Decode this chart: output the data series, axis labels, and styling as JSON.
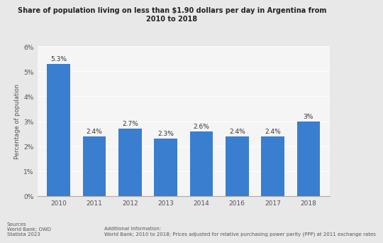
{
  "title_line1": "Share of population living on less than $1.90 dollars per day in Argentina from",
  "title_line2": "2010 to 2018",
  "categories": [
    "2010",
    "2011",
    "2012",
    "2013",
    "2014",
    "2016",
    "2017",
    "2018"
  ],
  "values": [
    5.3,
    2.4,
    2.7,
    2.3,
    2.6,
    2.4,
    2.4,
    3.0
  ],
  "labels": [
    "5.3%",
    "2.4%",
    "2.7%",
    "2.3%",
    "2.6%",
    "2.4%",
    "2.4%",
    "3%"
  ],
  "bar_color": "#3a7ecf",
  "ylabel": "Percentage of population",
  "ylim": [
    0,
    6
  ],
  "yticks": [
    0,
    1,
    2,
    3,
    4,
    5,
    6
  ],
  "ytick_labels": [
    "0%",
    "1%",
    "2%",
    "3%",
    "4%",
    "5%",
    "6%"
  ],
  "background_color": "#e8e8e8",
  "plot_bg_color": "#f5f5f5",
  "title_fontsize": 7.0,
  "label_fontsize": 6.5,
  "tick_fontsize": 6.5,
  "ylabel_fontsize": 6.0,
  "sources_text": "Sources\nWorld Bank; OWD\nStatista 2023",
  "additional_text": "Additional Information:\nWorld Bank; 2010 to 2018; Prices adjusted for relative purchasing power parity (PPP) at 2011 exchange rates"
}
